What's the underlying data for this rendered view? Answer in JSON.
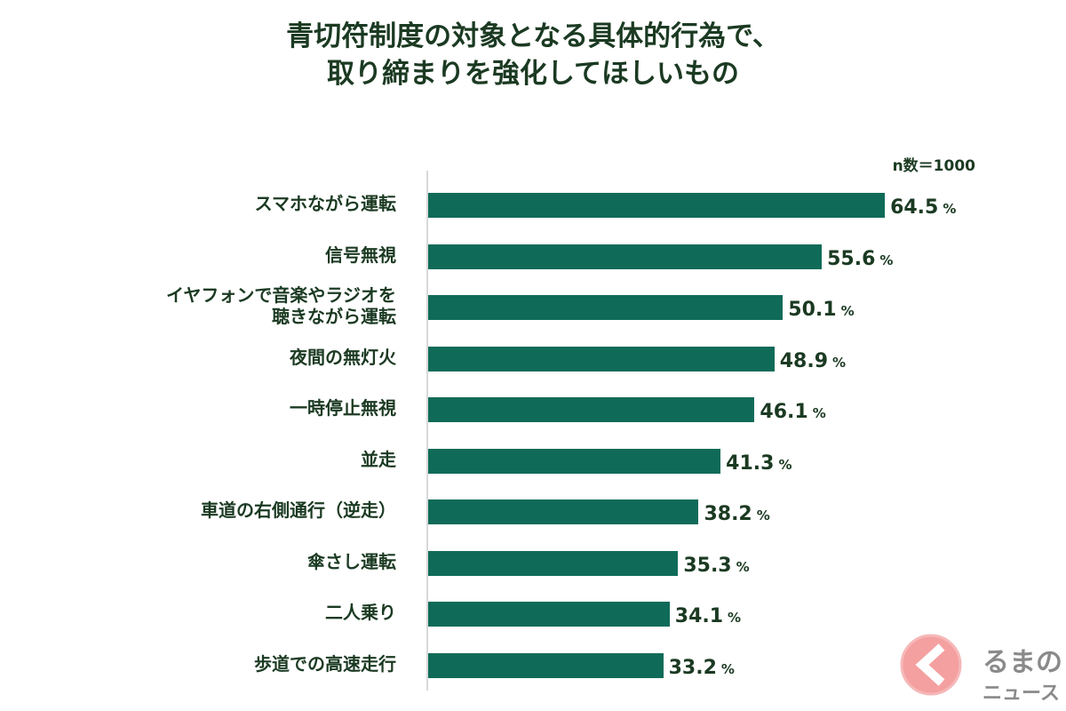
{
  "chart_data": {
    "type": "bar",
    "orientation": "horizontal",
    "title_lines": [
      "青切符制度の対象となる具体的行為で、",
      "取り締まりを強化してほしいもの"
    ],
    "note": "n数＝1000",
    "unit": "%",
    "categories": [
      "スマホながら運転",
      "信号無視",
      "イヤフォンで音楽やラジオを\n聴きながら運転",
      "夜間の無灯火",
      "一時停止無視",
      "並走",
      "車道の右側通行（逆走）",
      "傘さし運転",
      "二人乗り",
      "歩道での高速走行"
    ],
    "values": [
      64.5,
      55.6,
      50.1,
      48.9,
      46.1,
      41.3,
      38.2,
      35.3,
      34.1,
      33.2
    ],
    "xlim": [
      0,
      100
    ],
    "grid": false,
    "bar_color": "#0f6b58"
  },
  "logo": {
    "text": "くるまのニュース",
    "accent": "#f28c8c"
  }
}
